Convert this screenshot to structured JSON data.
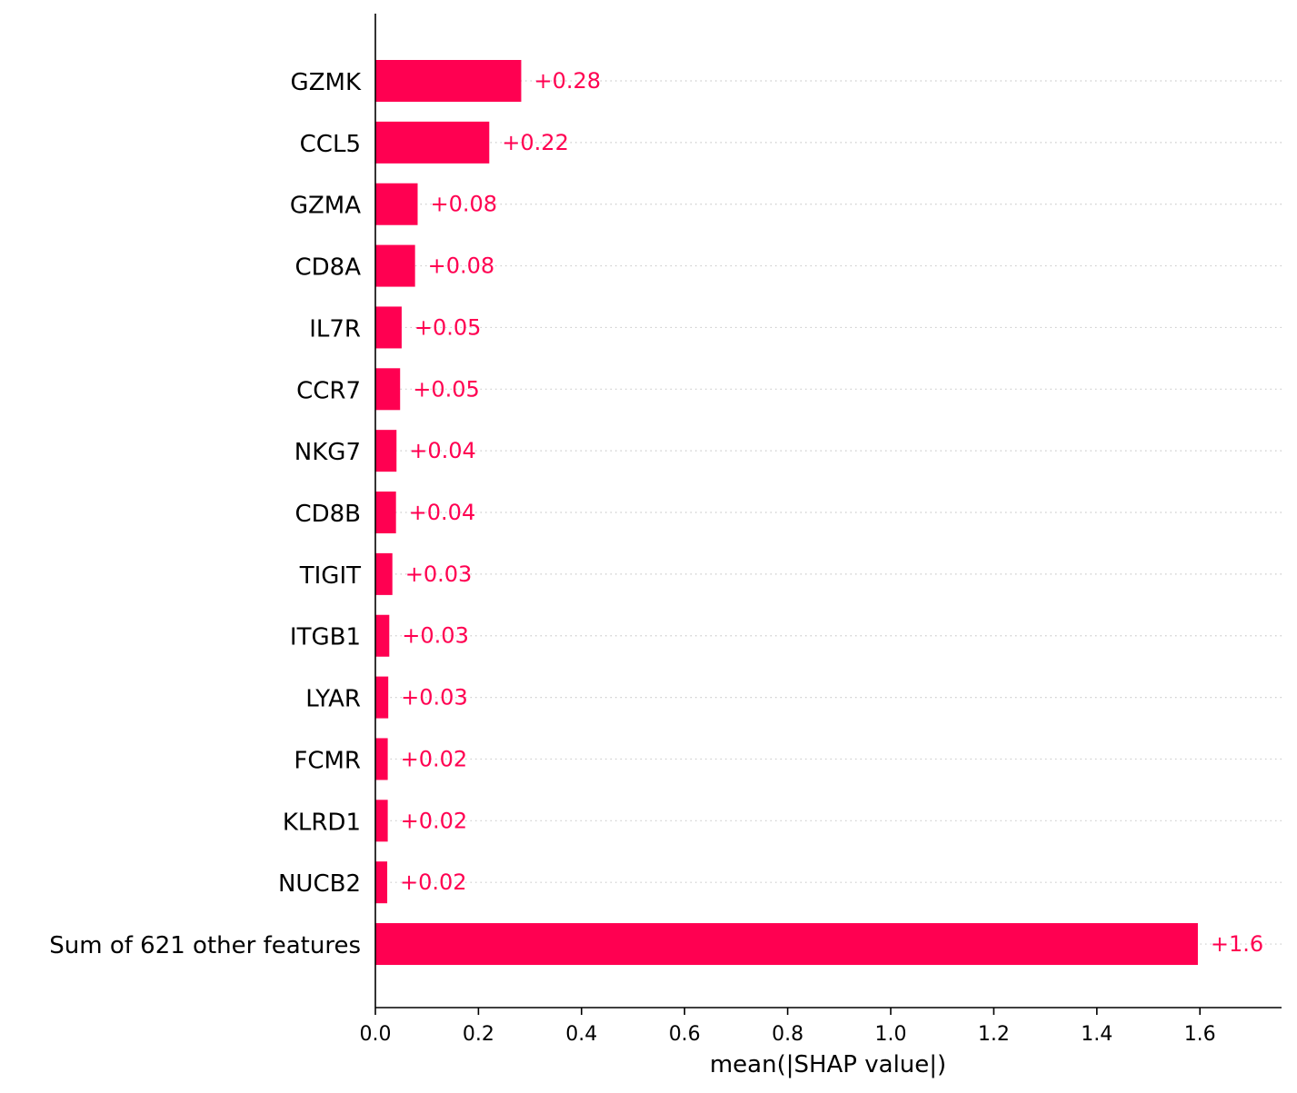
{
  "chart_data": {
    "type": "bar",
    "orientation": "horizontal",
    "categories": [
      "GZMK",
      "CCL5",
      "GZMA",
      "CD8A",
      "IL7R",
      "CCR7",
      "NKG7",
      "CD8B",
      "TIGIT",
      "ITGB1",
      "LYAR",
      "FCMR",
      "KLRD1",
      "NUCB2",
      "Sum of 621 other features"
    ],
    "values": [
      0.283,
      0.221,
      0.082,
      0.077,
      0.051,
      0.048,
      0.041,
      0.04,
      0.033,
      0.027,
      0.025,
      0.024,
      0.024,
      0.023,
      1.596
    ],
    "value_labels": [
      "+0.28",
      "+0.22",
      "+0.08",
      "+0.08",
      "+0.05",
      "+0.05",
      "+0.04",
      "+0.04",
      "+0.03",
      "+0.03",
      "+0.03",
      "+0.02",
      "+0.02",
      "+0.02",
      "+1.6"
    ],
    "title": "",
    "xlabel": "mean(|SHAP value|)",
    "ylabel": "",
    "xlim": [
      0,
      1.76
    ],
    "xticks": [
      0.0,
      0.2,
      0.4,
      0.6,
      0.8,
      1.0,
      1.2,
      1.4,
      1.6
    ],
    "xtick_labels": [
      "0.0",
      "0.2",
      "0.4",
      "0.6",
      "0.8",
      "1.0",
      "1.2",
      "1.4",
      "1.6"
    ],
    "grid": "dotted horizontal row guides",
    "legend": "none",
    "colors": {
      "bar": "#ff0051",
      "value_text": "#ff0051",
      "axis": "#000000",
      "gridline": "#cccccc"
    }
  }
}
